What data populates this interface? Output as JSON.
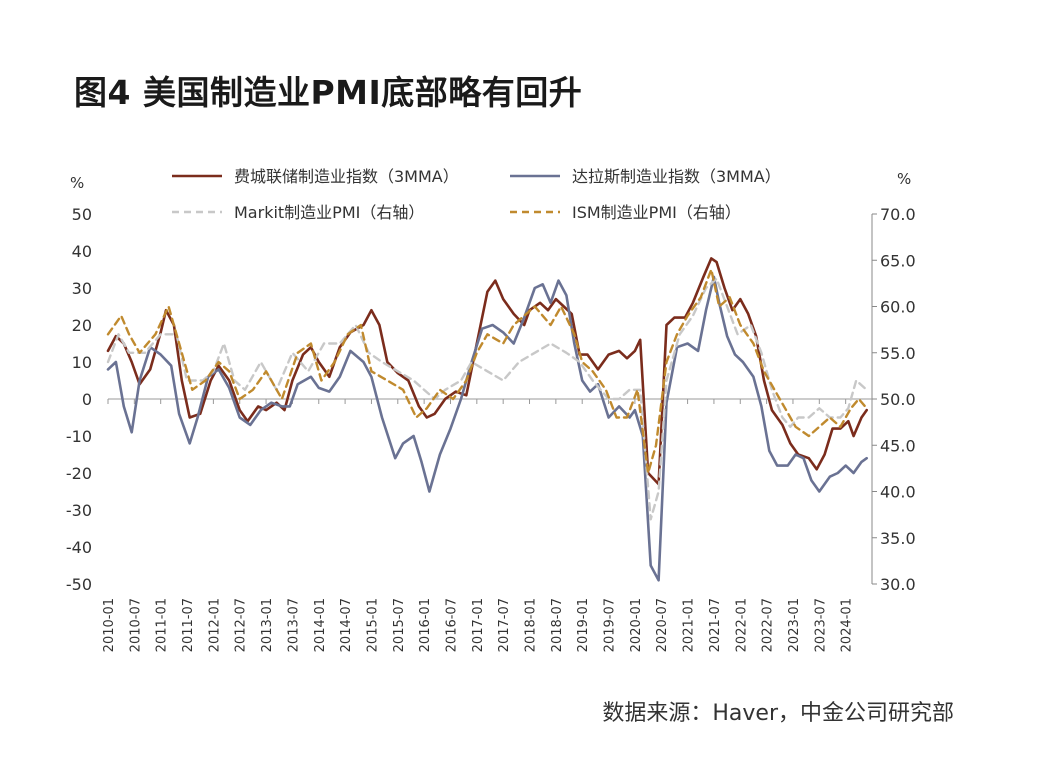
{
  "title": "图4  美国制造业PMI底部略有回升",
  "source": "数据来源：Haver，中金公司研究部",
  "chart_data": {
    "type": "line",
    "left_unit": "%",
    "right_unit": "%",
    "left_axis": {
      "ylim": [
        -50,
        50
      ],
      "ticks": [
        "50",
        "40",
        "30",
        "20",
        "10",
        "0",
        "-10",
        "-20",
        "-30",
        "-40",
        "-50"
      ]
    },
    "right_axis": {
      "ylim": [
        30,
        70
      ],
      "ticks": [
        "70.0",
        "65.0",
        "60.0",
        "55.0",
        "50.0",
        "45.0",
        "40.0",
        "35.0",
        "30.0"
      ]
    },
    "x_tick_labels": [
      "2010-01",
      "2010-07",
      "2011-01",
      "2011-07",
      "2012-01",
      "2012-07",
      "2013-01",
      "2013-07",
      "2014-01",
      "2014-07",
      "2015-01",
      "2015-07",
      "2016-01",
      "2016-07",
      "2017-01",
      "2017-07",
      "2018-01",
      "2018-07",
      "2019-01",
      "2019-07",
      "2020-01",
      "2020-07",
      "2021-01",
      "2021-07",
      "2022-01",
      "2022-07",
      "2023-01",
      "2023-07",
      "2024-01"
    ],
    "series": [
      {
        "name": "费城联储制造业指数（3MMA）",
        "axis": "left",
        "style": "solid",
        "color": "#7b2c1c",
        "points": [
          [
            2010.0,
            13
          ],
          [
            2010.15,
            17
          ],
          [
            2010.3,
            15
          ],
          [
            2010.45,
            10
          ],
          [
            2010.6,
            4
          ],
          [
            2010.8,
            8
          ],
          [
            2011.0,
            18
          ],
          [
            2011.1,
            24
          ],
          [
            2011.25,
            20
          ],
          [
            2011.4,
            5
          ],
          [
            2011.55,
            -5
          ],
          [
            2011.75,
            -4
          ],
          [
            2011.95,
            5
          ],
          [
            2012.1,
            9
          ],
          [
            2012.3,
            5
          ],
          [
            2012.5,
            -3
          ],
          [
            2012.65,
            -6
          ],
          [
            2012.85,
            -2
          ],
          [
            2013.0,
            -3
          ],
          [
            2013.2,
            -1
          ],
          [
            2013.35,
            -3
          ],
          [
            2013.5,
            5
          ],
          [
            2013.7,
            12
          ],
          [
            2013.85,
            14
          ],
          [
            2014.0,
            10
          ],
          [
            2014.2,
            6
          ],
          [
            2014.4,
            14
          ],
          [
            2014.6,
            18
          ],
          [
            2014.85,
            20
          ],
          [
            2015.0,
            24
          ],
          [
            2015.15,
            20
          ],
          [
            2015.3,
            10
          ],
          [
            2015.5,
            7
          ],
          [
            2015.7,
            5
          ],
          [
            2015.9,
            -2
          ],
          [
            2016.05,
            -5
          ],
          [
            2016.2,
            -4
          ],
          [
            2016.4,
            0
          ],
          [
            2016.6,
            2
          ],
          [
            2016.8,
            1
          ],
          [
            2017.0,
            15
          ],
          [
            2017.2,
            29
          ],
          [
            2017.35,
            32
          ],
          [
            2017.5,
            27
          ],
          [
            2017.7,
            23
          ],
          [
            2017.9,
            20
          ],
          [
            2018.0,
            24
          ],
          [
            2018.2,
            26
          ],
          [
            2018.35,
            24
          ],
          [
            2018.5,
            27
          ],
          [
            2018.65,
            25
          ],
          [
            2018.8,
            23
          ],
          [
            2018.95,
            12
          ],
          [
            2019.1,
            12
          ],
          [
            2019.3,
            8
          ],
          [
            2019.5,
            12
          ],
          [
            2019.7,
            13
          ],
          [
            2019.85,
            11
          ],
          [
            2020.0,
            13
          ],
          [
            2020.1,
            16
          ],
          [
            2020.25,
            -20
          ],
          [
            2020.45,
            -23
          ],
          [
            2020.6,
            20
          ],
          [
            2020.75,
            22
          ],
          [
            2020.95,
            22
          ],
          [
            2021.1,
            26
          ],
          [
            2021.3,
            33
          ],
          [
            2021.45,
            38
          ],
          [
            2021.55,
            37
          ],
          [
            2021.7,
            30
          ],
          [
            2021.85,
            24
          ],
          [
            2022.0,
            27
          ],
          [
            2022.15,
            23
          ],
          [
            2022.3,
            17
          ],
          [
            2022.45,
            5
          ],
          [
            2022.6,
            -3
          ],
          [
            2022.8,
            -7
          ],
          [
            2022.95,
            -12
          ],
          [
            2023.1,
            -15
          ],
          [
            2023.3,
            -16
          ],
          [
            2023.45,
            -19
          ],
          [
            2023.6,
            -15
          ],
          [
            2023.75,
            -8
          ],
          [
            2023.9,
            -8
          ],
          [
            2024.05,
            -6
          ],
          [
            2024.15,
            -10
          ],
          [
            2024.3,
            -5
          ],
          [
            2024.4,
            -3
          ]
        ]
      },
      {
        "name": "达拉斯制造业指数（3MMA）",
        "axis": "left",
        "style": "solid",
        "color": "#6a7293",
        "points": [
          [
            2010.0,
            8
          ],
          [
            2010.15,
            10
          ],
          [
            2010.3,
            -2
          ],
          [
            2010.45,
            -9
          ],
          [
            2010.6,
            5
          ],
          [
            2010.8,
            14
          ],
          [
            2011.0,
            12
          ],
          [
            2011.2,
            9
          ],
          [
            2011.35,
            -4
          ],
          [
            2011.55,
            -12
          ],
          [
            2011.7,
            -5
          ],
          [
            2011.9,
            6
          ],
          [
            2012.1,
            8
          ],
          [
            2012.3,
            3
          ],
          [
            2012.5,
            -5
          ],
          [
            2012.7,
            -7
          ],
          [
            2012.9,
            -3
          ],
          [
            2013.1,
            -1
          ],
          [
            2013.3,
            -2
          ],
          [
            2013.45,
            -2
          ],
          [
            2013.6,
            4
          ],
          [
            2013.85,
            6
          ],
          [
            2014.0,
            3
          ],
          [
            2014.2,
            2
          ],
          [
            2014.4,
            6
          ],
          [
            2014.6,
            13
          ],
          [
            2014.85,
            10
          ],
          [
            2015.0,
            6
          ],
          [
            2015.2,
            -5
          ],
          [
            2015.45,
            -16
          ],
          [
            2015.6,
            -12
          ],
          [
            2015.8,
            -10
          ],
          [
            2015.95,
            -17
          ],
          [
            2016.1,
            -25
          ],
          [
            2016.3,
            -15
          ],
          [
            2016.5,
            -8
          ],
          [
            2016.7,
            0
          ],
          [
            2016.9,
            10
          ],
          [
            2017.1,
            19
          ],
          [
            2017.3,
            20
          ],
          [
            2017.5,
            18
          ],
          [
            2017.7,
            15
          ],
          [
            2017.9,
            22
          ],
          [
            2018.1,
            30
          ],
          [
            2018.25,
            31
          ],
          [
            2018.4,
            26
          ],
          [
            2018.55,
            32
          ],
          [
            2018.7,
            28
          ],
          [
            2018.85,
            15
          ],
          [
            2019.0,
            5
          ],
          [
            2019.15,
            2
          ],
          [
            2019.3,
            4
          ],
          [
            2019.5,
            -5
          ],
          [
            2019.7,
            -2
          ],
          [
            2019.9,
            -5
          ],
          [
            2020.0,
            -3
          ],
          [
            2020.15,
            -10
          ],
          [
            2020.3,
            -45
          ],
          [
            2020.45,
            -49
          ],
          [
            2020.6,
            -1
          ],
          [
            2020.8,
            14
          ],
          [
            2021.0,
            15
          ],
          [
            2021.2,
            13
          ],
          [
            2021.35,
            24
          ],
          [
            2021.5,
            33
          ],
          [
            2021.6,
            26
          ],
          [
            2021.75,
            17
          ],
          [
            2021.9,
            12
          ],
          [
            2022.05,
            10
          ],
          [
            2022.25,
            6
          ],
          [
            2022.4,
            -2
          ],
          [
            2022.55,
            -14
          ],
          [
            2022.7,
            -18
          ],
          [
            2022.9,
            -18
          ],
          [
            2023.05,
            -15
          ],
          [
            2023.2,
            -16
          ],
          [
            2023.35,
            -22
          ],
          [
            2023.5,
            -25
          ],
          [
            2023.7,
            -21
          ],
          [
            2023.85,
            -20
          ],
          [
            2024.0,
            -18
          ],
          [
            2024.15,
            -20
          ],
          [
            2024.3,
            -17
          ],
          [
            2024.4,
            -16
          ]
        ]
      },
      {
        "name": "Markit制造业PMI（右轴）",
        "axis": "right",
        "style": "dashed",
        "color": "#c8c8c8",
        "points": [
          [
            2010.0,
            54
          ],
          [
            2010.2,
            57
          ],
          [
            2010.4,
            55
          ],
          [
            2010.7,
            55
          ],
          [
            2011.0,
            57
          ],
          [
            2011.3,
            57
          ],
          [
            2011.5,
            52
          ],
          [
            2011.8,
            52
          ],
          [
            2012.0,
            53
          ],
          [
            2012.2,
            56
          ],
          [
            2012.4,
            52
          ],
          [
            2012.6,
            51
          ],
          [
            2012.9,
            54
          ],
          [
            2013.2,
            51
          ],
          [
            2013.5,
            55
          ],
          [
            2013.8,
            53
          ],
          [
            2014.1,
            56
          ],
          [
            2014.4,
            56
          ],
          [
            2014.7,
            58
          ],
          [
            2014.95,
            55
          ],
          [
            2015.2,
            54
          ],
          [
            2015.5,
            53
          ],
          [
            2015.8,
            52
          ],
          [
            2016.0,
            51
          ],
          [
            2016.2,
            50
          ],
          [
            2016.4,
            51
          ],
          [
            2016.7,
            52
          ],
          [
            2016.9,
            54
          ],
          [
            2017.2,
            53
          ],
          [
            2017.5,
            52
          ],
          [
            2017.8,
            54
          ],
          [
            2018.1,
            55
          ],
          [
            2018.4,
            56
          ],
          [
            2018.7,
            55
          ],
          [
            2018.95,
            54
          ],
          [
            2019.2,
            52
          ],
          [
            2019.5,
            50
          ],
          [
            2019.7,
            50
          ],
          [
            2019.9,
            51
          ],
          [
            2020.1,
            51
          ],
          [
            2020.3,
            37
          ],
          [
            2020.45,
            40
          ],
          [
            2020.6,
            52
          ],
          [
            2020.85,
            57
          ],
          [
            2021.1,
            59
          ],
          [
            2021.35,
            62
          ],
          [
            2021.55,
            63
          ],
          [
            2021.75,
            60
          ],
          [
            2021.95,
            57
          ],
          [
            2022.2,
            58
          ],
          [
            2022.4,
            55
          ],
          [
            2022.6,
            51
          ],
          [
            2022.8,
            48
          ],
          [
            2022.95,
            47
          ],
          [
            2023.1,
            48
          ],
          [
            2023.3,
            48
          ],
          [
            2023.5,
            49
          ],
          [
            2023.7,
            48
          ],
          [
            2023.9,
            48
          ],
          [
            2024.05,
            49
          ],
          [
            2024.2,
            52
          ],
          [
            2024.4,
            51
          ]
        ]
      },
      {
        "name": "ISM制造业PMI（右轴）",
        "axis": "right",
        "style": "dashed",
        "color": "#c08a2e",
        "points": [
          [
            2010.0,
            57
          ],
          [
            2010.25,
            59
          ],
          [
            2010.4,
            57
          ],
          [
            2010.6,
            55
          ],
          [
            2010.9,
            57
          ],
          [
            2011.15,
            60
          ],
          [
            2011.4,
            55
          ],
          [
            2011.6,
            51
          ],
          [
            2011.85,
            52
          ],
          [
            2012.1,
            54
          ],
          [
            2012.3,
            53
          ],
          [
            2012.5,
            50
          ],
          [
            2012.75,
            51
          ],
          [
            2013.0,
            53
          ],
          [
            2013.3,
            50
          ],
          [
            2013.6,
            55
          ],
          [
            2013.85,
            56
          ],
          [
            2014.05,
            52
          ],
          [
            2014.3,
            54
          ],
          [
            2014.55,
            57
          ],
          [
            2014.8,
            58
          ],
          [
            2015.0,
            53
          ],
          [
            2015.3,
            52
          ],
          [
            2015.6,
            51
          ],
          [
            2015.85,
            48
          ],
          [
            2016.05,
            49
          ],
          [
            2016.3,
            51
          ],
          [
            2016.55,
            50
          ],
          [
            2016.8,
            52
          ],
          [
            2017.0,
            55
          ],
          [
            2017.2,
            57
          ],
          [
            2017.5,
            56
          ],
          [
            2017.7,
            58
          ],
          [
            2017.9,
            59
          ],
          [
            2018.1,
            60
          ],
          [
            2018.4,
            58
          ],
          [
            2018.6,
            60
          ],
          [
            2018.85,
            57
          ],
          [
            2019.0,
            54
          ],
          [
            2019.2,
            53
          ],
          [
            2019.45,
            51
          ],
          [
            2019.65,
            48
          ],
          [
            2019.85,
            48
          ],
          [
            2020.05,
            51
          ],
          [
            2020.25,
            42
          ],
          [
            2020.4,
            45
          ],
          [
            2020.6,
            54
          ],
          [
            2020.8,
            57
          ],
          [
            2021.0,
            59
          ],
          [
            2021.25,
            61
          ],
          [
            2021.45,
            64
          ],
          [
            2021.6,
            60
          ],
          [
            2021.8,
            61
          ],
          [
            2022.0,
            58
          ],
          [
            2022.25,
            56
          ],
          [
            2022.45,
            53
          ],
          [
            2022.65,
            51
          ],
          [
            2022.85,
            49
          ],
          [
            2023.05,
            47
          ],
          [
            2023.3,
            46
          ],
          [
            2023.5,
            47
          ],
          [
            2023.7,
            48
          ],
          [
            2023.9,
            47
          ],
          [
            2024.1,
            49
          ],
          [
            2024.25,
            50
          ],
          [
            2024.4,
            49
          ]
        ]
      }
    ]
  }
}
